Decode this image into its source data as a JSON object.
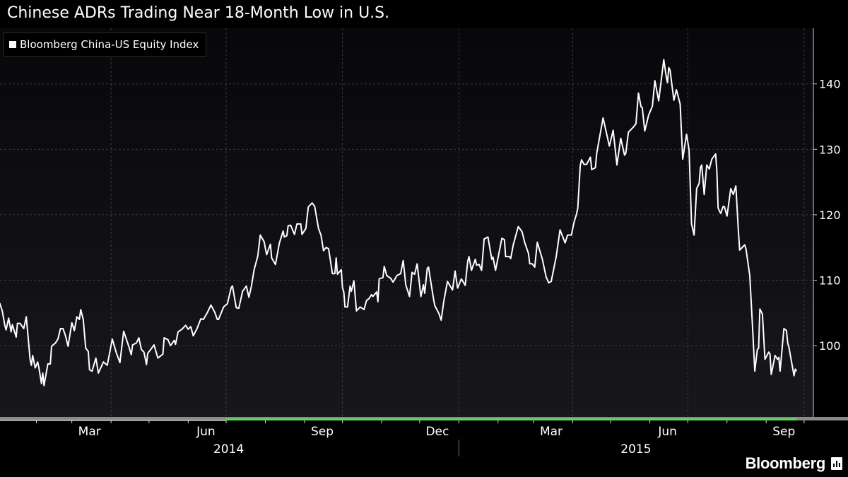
{
  "title": "Chinese ADRs Trading Near 18-Month Low in U.S.",
  "brand": "Bloomberg",
  "colors": {
    "line": "#ffffff",
    "background": "#000000",
    "plot_bg_top": "#08080b",
    "plot_bg_bottom": "#17171c",
    "grid": "#3a3a40",
    "range_bar": "#8a8a8a",
    "range_highlight": "#5cd65c"
  },
  "chart_data": {
    "type": "line",
    "title": "Chinese ADRs Trading Near 18-Month Low in U.S.",
    "x_unit": "days since 2014-01-01",
    "xlim": [
      2.2,
      645.3
    ],
    "ylim": [
      89.1,
      148.5
    ],
    "yticks": [
      100,
      110,
      120,
      130,
      140
    ],
    "ytick_labels": [
      "100",
      "110",
      "120",
      "130",
      "140"
    ],
    "grid": true,
    "legend_placement": "top-left",
    "x_gridlines_days": [
      90,
      181,
      273,
      365,
      455,
      546,
      638
    ],
    "month_ticks_days": [
      31,
      59,
      90,
      120,
      151,
      181,
      212,
      243,
      273,
      304,
      334,
      365,
      396,
      424,
      455,
      485,
      516,
      546,
      577,
      608,
      638
    ],
    "month_labels": [
      {
        "label": "Mar",
        "day": 73
      },
      {
        "label": "Jun",
        "day": 165
      },
      {
        "label": "Sep",
        "day": 257
      },
      {
        "label": "Dec",
        "day": 348
      },
      {
        "label": "Mar",
        "day": 438
      },
      {
        "label": "Jun",
        "day": 530
      },
      {
        "label": "Sep",
        "day": 622
      }
    ],
    "year_labels": [
      {
        "label": "2014",
        "day": 183
      },
      {
        "label": "2015",
        "day": 505
      }
    ],
    "year_divider_day": 365,
    "series": [
      {
        "name": "Bloomberg China-US Equity Index",
        "x": [
          2,
          4,
          6,
          7,
          9,
          11,
          12,
          15,
          16,
          18,
          21,
          23,
          26,
          27,
          28,
          30,
          32,
          33,
          35,
          36,
          37,
          40,
          42,
          43,
          46,
          48,
          50,
          52,
          54,
          56,
          59,
          61,
          63,
          65,
          66,
          68,
          70,
          72,
          73,
          75,
          78,
          80,
          84,
          87,
          91,
          94,
          97,
          100,
          104,
          106,
          107,
          110,
          112,
          114,
          116,
          118,
          119,
          124,
          127,
          131,
          132,
          135,
          137,
          140,
          141,
          143,
          146,
          149,
          151,
          153,
          155,
          158,
          161,
          163,
          166,
          169,
          172,
          174,
          175,
          179,
          182,
          185,
          186,
          189,
          191,
          194,
          197,
          199,
          201,
          203,
          206,
          208,
          211,
          213,
          216,
          217,
          220,
          223,
          226,
          227,
          229,
          230,
          232,
          235,
          237,
          240,
          241,
          244,
          246,
          249,
          251,
          254,
          256,
          258,
          260,
          262,
          265,
          267,
          268,
          269,
          272,
          273,
          274,
          275,
          277,
          279,
          280,
          282,
          284,
          287,
          290,
          292,
          294,
          296,
          297,
          300,
          301,
          302,
          305,
          306,
          308,
          311,
          313,
          316,
          319,
          321,
          323,
          326,
          328,
          330,
          332,
          335,
          337,
          338,
          340,
          341,
          345,
          346,
          349,
          351,
          353,
          356,
          360,
          362,
          364,
          367,
          370,
          372,
          373,
          375,
          378,
          379,
          381,
          383,
          385,
          388,
          391,
          392,
          394,
          399,
          401,
          402,
          405,
          406,
          408,
          412,
          415,
          417,
          420,
          421,
          423,
          425,
          427,
          431,
          434,
          436,
          438,
          442,
          445,
          449,
          451,
          454,
          456,
          458,
          459,
          461,
          462,
          464,
          466,
          469,
          470,
          473,
          474,
          479,
          484,
          487,
          490,
          493,
          496,
          497,
          499,
          503,
          505,
          507,
          509,
          510,
          512,
          515,
          518,
          520,
          523,
          527,
          529,
          530,
          531,
          532,
          535,
          537,
          540,
          542,
          545,
          547,
          549,
          551,
          553,
          555,
          556,
          557,
          559,
          561,
          563,
          565,
          568,
          569,
          570,
          572,
          574,
          575,
          577,
          580,
          582,
          584,
          586,
          587,
          591,
          592,
          595,
          597,
          599,
          601,
          602,
          603,
          605,
          607,
          610,
          611,
          612,
          615,
          617,
          618,
          619,
          622,
          624,
          625,
          626,
          630,
          631,
          632
        ],
        "values": [
          106.5,
          105.3,
          103.1,
          102.4,
          104.2,
          102.1,
          103.2,
          101.3,
          103.4,
          103.4,
          102.6,
          104.4,
          97.9,
          97.0,
          98.5,
          96.6,
          97.5,
          96.6,
          94.2,
          95.8,
          93.9,
          97.2,
          97.2,
          99.9,
          100.4,
          101.0,
          102.6,
          102.6,
          101.5,
          99.9,
          103.5,
          102.3,
          104.4,
          104.0,
          105.5,
          104.0,
          99.6,
          99.1,
          96.3,
          96.1,
          98.1,
          95.8,
          97.5,
          97.0,
          101.0,
          99.0,
          97.4,
          102.2,
          99.9,
          98.6,
          100.1,
          100.4,
          101.2,
          99.4,
          99.0,
          97.1,
          98.8,
          100.1,
          98.1,
          98.7,
          101.2,
          100.9,
          100.0,
          100.8,
          100.2,
          102.1,
          102.5,
          103.1,
          102.5,
          102.9,
          101.5,
          102.6,
          104.1,
          104.0,
          105.0,
          106.2,
          105.1,
          104.0,
          104.0,
          105.9,
          106.4,
          108.9,
          109.1,
          105.8,
          105.7,
          108.3,
          109.1,
          107.4,
          109.1,
          111.5,
          113.7,
          116.9,
          115.9,
          113.9,
          115.5,
          113.4,
          112.4,
          115.6,
          117.5,
          116.6,
          116.8,
          118.3,
          118.4,
          117.0,
          118.6,
          118.6,
          117.0,
          117.9,
          121.2,
          121.8,
          121.3,
          117.9,
          116.9,
          114.5,
          115.0,
          114.8,
          111.0,
          111.0,
          113.4,
          110.9,
          111.6,
          108.8,
          108.2,
          105.9,
          105.9,
          109.1,
          108.3,
          109.9,
          105.3,
          105.9,
          105.5,
          106.9,
          107.2,
          107.8,
          107.5,
          108.2,
          106.7,
          110.2,
          110.4,
          112.1,
          110.7,
          110.3,
          109.7,
          110.7,
          111.0,
          113.0,
          109.3,
          107.5,
          111.2,
          110.9,
          112.5,
          107.5,
          109.3,
          108.0,
          111.8,
          112.0,
          107.1,
          106.1,
          105.0,
          103.9,
          106.7,
          109.8,
          108.5,
          111.4,
          108.8,
          110.2,
          109.2,
          112.9,
          113.6,
          111.5,
          113.2,
          112.3,
          112.4,
          111.5,
          116.3,
          116.6,
          113.2,
          113.5,
          111.5,
          116.4,
          116.2,
          113.6,
          113.6,
          113.3,
          115.4,
          118.2,
          117.4,
          115.8,
          114.1,
          112.5,
          112.5,
          112.0,
          115.8,
          113.2,
          110.5,
          109.6,
          109.8,
          113.6,
          117.7,
          115.7,
          116.9,
          116.9,
          118.8,
          120.1,
          121.0,
          127.5,
          128.4,
          127.7,
          127.7,
          128.8,
          126.9,
          127.2,
          129.4,
          134.8,
          130.5,
          132.9,
          127.6,
          131.7,
          129.1,
          129.4,
          132.6,
          133.4,
          133.9,
          138.6,
          136.5,
          136.4,
          132.8,
          135.2,
          136.6,
          140.5,
          137.4,
          143.7,
          141.1,
          140.2,
          142.5,
          142.1,
          137.5,
          139.1,
          136.9,
          128.5,
          132.3,
          129.9,
          118.6,
          116.9,
          124.0,
          124.8,
          127.2,
          127.6,
          123.1,
          127.6,
          127.0,
          128.5,
          129.3,
          126.7,
          121.0,
          120.2,
          121.3,
          121.2,
          119.8,
          124.0,
          123.1,
          124.4,
          117.5,
          114.6,
          115.4,
          114.8,
          110.7,
          103.5,
          96.1,
          99.4,
          99.6,
          105.6,
          104.8,
          97.9,
          99.0,
          98.7,
          95.6,
          98.5,
          97.9,
          98.2,
          96.1,
          102.6,
          102.3,
          100.4,
          99.7,
          95.4,
          96.4,
          96.1
        ]
      }
    ]
  }
}
